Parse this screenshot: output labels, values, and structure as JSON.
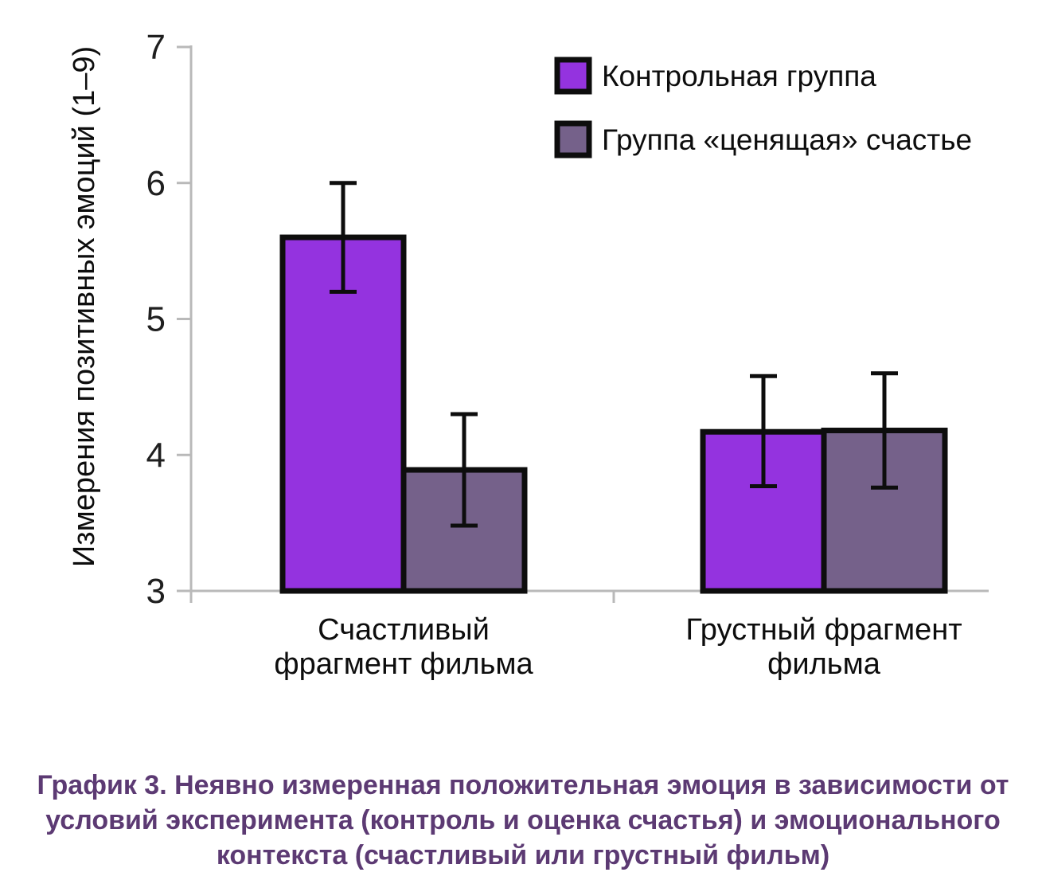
{
  "figure": {
    "background": "#ffffff"
  },
  "chart_data": {
    "type": "bar",
    "title": "",
    "categories": [
      "Счастливый\nфрагмент фильма",
      "Грустный фрагмент\nфильма"
    ],
    "series": [
      {
        "name": "Контрольная группа",
        "color": "#9433DF",
        "values": [
          5.6,
          4.17
        ],
        "err_low": [
          0.4,
          0.4
        ],
        "err_high": [
          0.4,
          0.41
        ]
      },
      {
        "name": "Группа «ценящая» счастье",
        "color": "#75618A",
        "values": [
          3.89,
          4.18
        ],
        "err_low": [
          0.41,
          0.42
        ],
        "err_high": [
          0.41,
          0.42
        ]
      }
    ],
    "xlabel": "",
    "ylabel": "Измерения позитивных эмоций (1–9)",
    "ylim": [
      3,
      7
    ],
    "yticks": [
      3,
      4,
      5,
      6,
      7
    ],
    "grid": false,
    "error_bars": true,
    "legend_position": "top-right",
    "axis_color": "#b9b9b9",
    "bar_outline_color": "#0d0d0d",
    "text_color": "#1f1f1f"
  },
  "caption": {
    "color": "#5C3A73",
    "lines": [
      "График 3. Неявно измеренная положительная эмоция в зависимости от",
      "условий эксперимента (контроль и оценка счастья) и эмоционального",
      "контекста (счастливый или грустный фильм)"
    ]
  }
}
